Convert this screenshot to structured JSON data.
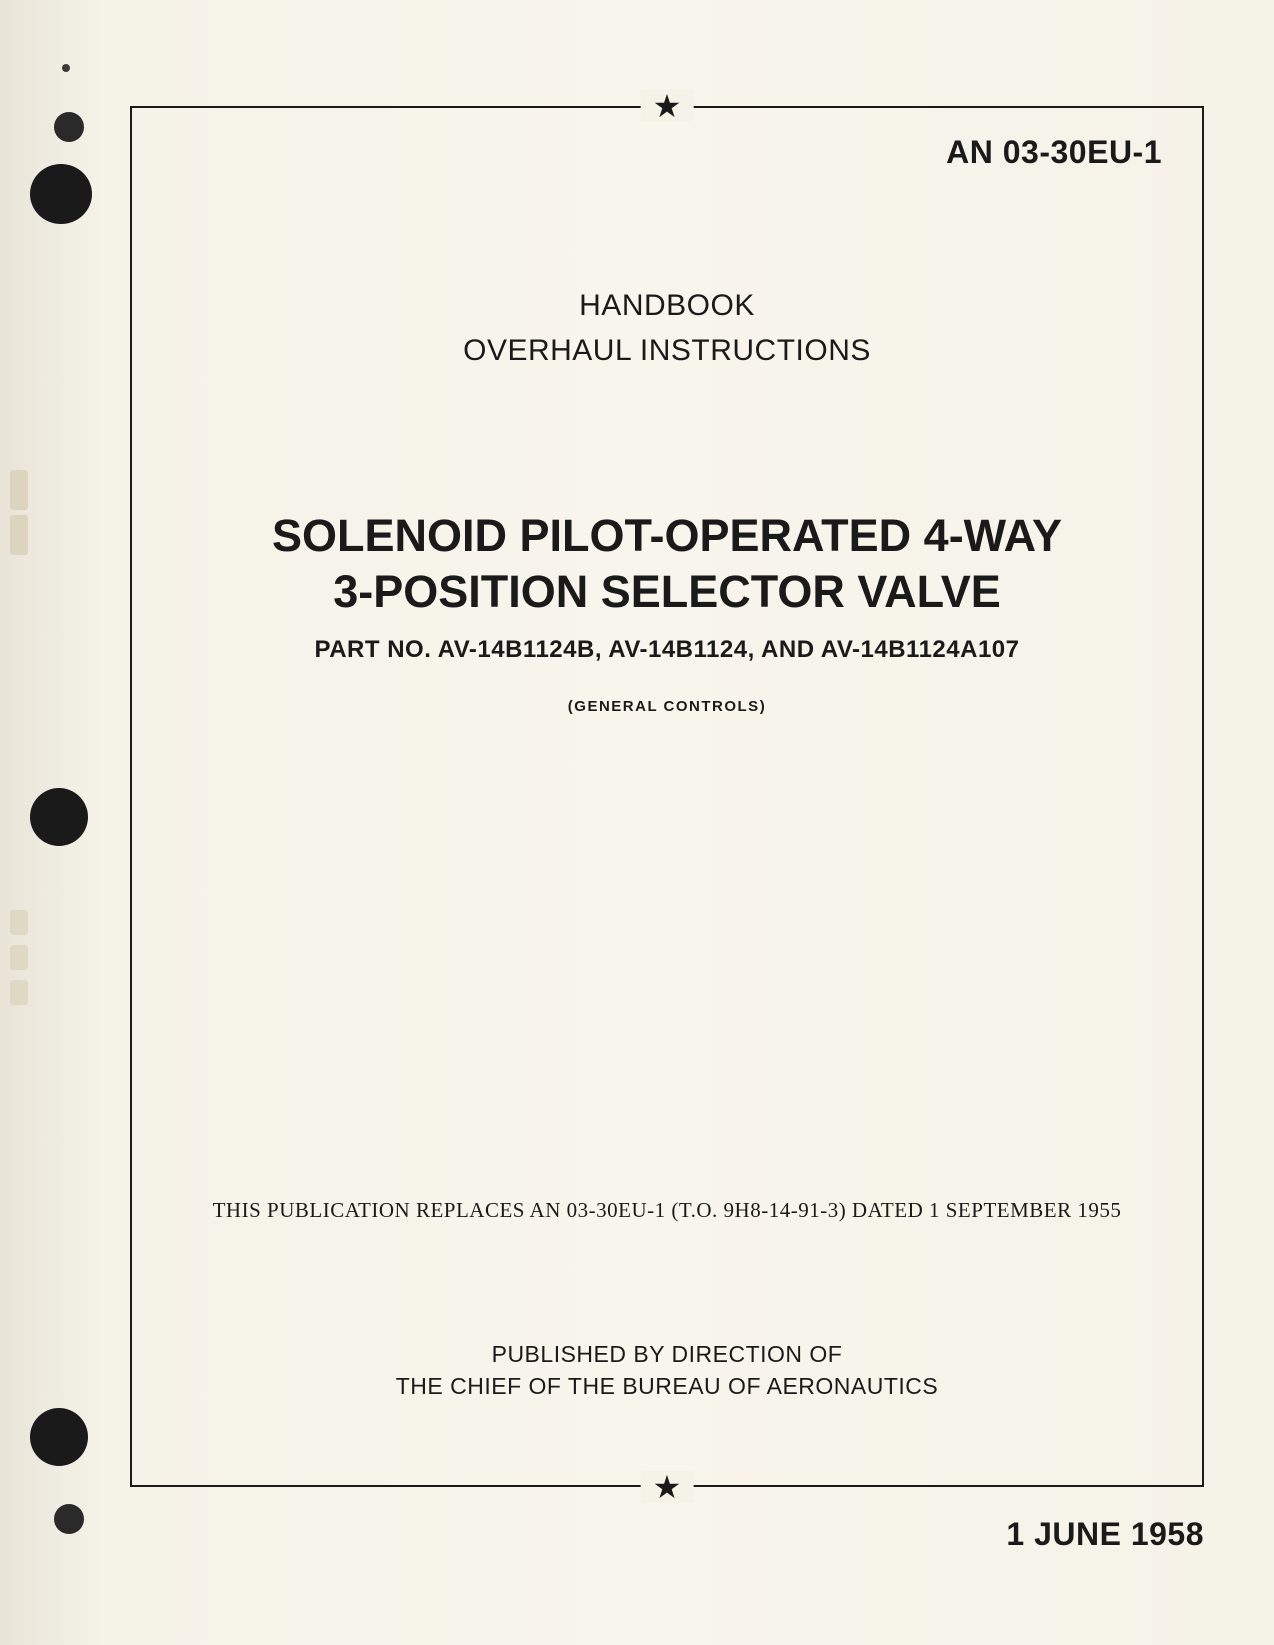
{
  "document_number": "AN 03-30EU-1",
  "header": {
    "line1": "HANDBOOK",
    "line2": "OVERHAUL INSTRUCTIONS"
  },
  "title": {
    "line1": "SOLENOID PILOT-OPERATED 4-WAY",
    "line2": "3-POSITION SELECTOR VALVE"
  },
  "part_number": "PART NO. AV-14B1124B, AV-14B1124, AND AV-14B1124A107",
  "manufacturer": "(GENERAL CONTROLS)",
  "replacement_note": "THIS PUBLICATION REPLACES AN 03-30EU-1 (T.O. 9H8-14-91-3) DATED 1 SEPTEMBER 1955",
  "publisher": {
    "line1": "PUBLISHED BY DIRECTION OF",
    "line2": "THE CHIEF OF THE BUREAU OF AERONAUTICS"
  },
  "publication_date": "1 JUNE 1958",
  "star_symbol": "★",
  "colors": {
    "page_bg": "#f5f2e8",
    "text": "#1a1a1a",
    "hole": "#1a1a1a",
    "border": "#1a1a1a"
  }
}
